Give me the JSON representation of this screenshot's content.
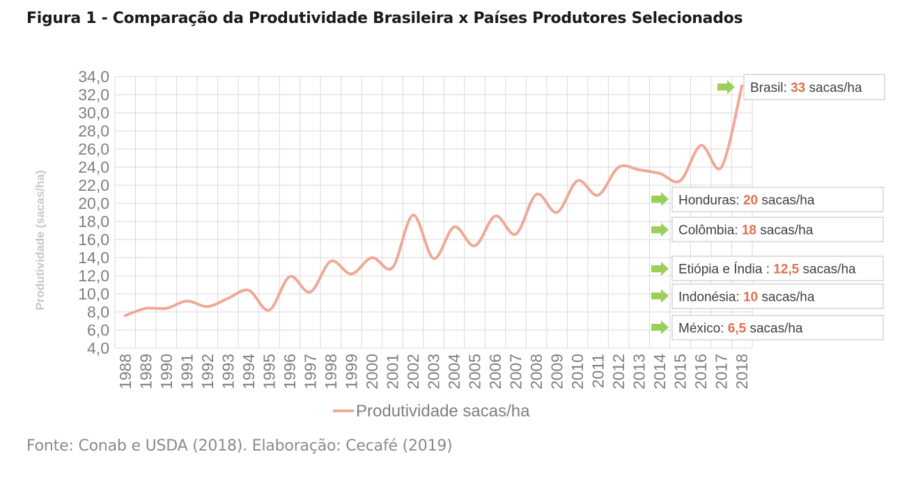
{
  "figure_title": "Figura 1 - Comparação da Produtividade Brasileira x Países Produtores Selecionados",
  "source_note": "Fonte: Conab e USDA (2018). Elaboração: Cecafé (2019)",
  "colors": {
    "line": "#f0a898",
    "arrow": "#9ccf5a",
    "highlight": "#e07050",
    "grid": "#d9d9d9",
    "axis_text": "#7f7f7f",
    "ylabel": "#c8c8c8",
    "box_border": "#bfbfbf",
    "label_text": "#404040"
  },
  "chart_data": {
    "type": "line",
    "ylabel": "Produtividade (sacas/ha)",
    "xlabel": "",
    "ylim": [
      4,
      34
    ],
    "y_ticks": [
      "4,0",
      "6,0",
      "8,0",
      "10,0",
      "12,0",
      "14,0",
      "16,0",
      "18,0",
      "20,0",
      "22,0",
      "24,0",
      "26,0",
      "28,0",
      "30,0",
      "32,0",
      "34,0"
    ],
    "grid": true,
    "legend_position": "bottom",
    "categories": [
      "1988",
      "1989",
      "1990",
      "1991",
      "1992",
      "1993",
      "1994",
      "1995",
      "1996",
      "1997",
      "1998",
      "1999",
      "2000",
      "2001",
      "2002",
      "2003",
      "2004",
      "2005",
      "2006",
      "2007",
      "2008",
      "2009",
      "2010",
      "2011",
      "2012",
      "2013",
      "2014",
      "2015",
      "2016",
      "2017",
      "2018"
    ],
    "series": [
      {
        "name": "Produtividade sacas/ha",
        "values": [
          7.6,
          8.4,
          8.4,
          9.2,
          8.6,
          9.5,
          10.4,
          8.2,
          11.9,
          10.2,
          13.6,
          12.2,
          14.0,
          12.9,
          18.7,
          13.9,
          17.4,
          15.3,
          18.6,
          16.6,
          21.0,
          19.0,
          22.5,
          20.9,
          24.0,
          23.7,
          23.3,
          22.5,
          26.4,
          24.0,
          33.0
        ]
      }
    ],
    "annotations": [
      {
        "name": "Brasil:",
        "value": "33",
        "unit": "sacas/ha"
      },
      {
        "name": "Honduras:",
        "value": "20",
        "unit": "sacas/ha"
      },
      {
        "name": "Colômbia:",
        "value": "18",
        "unit": "sacas/ha"
      },
      {
        "name": "Etiópia e Índia :",
        "value": "12,5",
        "unit": "sacas/ha"
      },
      {
        "name": "Indonésia:",
        "value": "10",
        "unit": "sacas/ha"
      },
      {
        "name": "México:",
        "value": "6,5",
        "unit": "sacas/ha"
      }
    ]
  }
}
